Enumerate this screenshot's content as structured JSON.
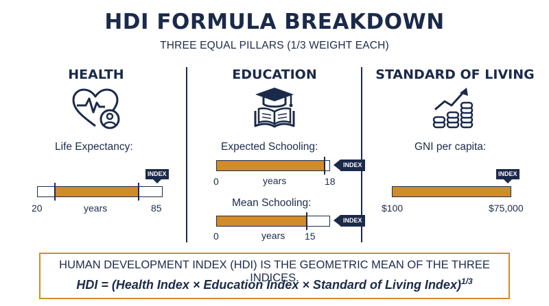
{
  "title": "HDI FORMULA BREAKDOWN",
  "subtitle": "THREE EQUAL PILLARS (1/3 WEIGHT EACH)",
  "index_flag": "INDEX",
  "colors": {
    "navy": "#1b2a4a",
    "gold": "#d08c2a"
  },
  "pillars": [
    {
      "title": "HEALTH",
      "icon": "heart-pulse-person-icon",
      "indicators": [
        {
          "label": "Life Expectancy:",
          "unit": "years",
          "min_label": "20",
          "max_label": "85",
          "fill_start": 0.14,
          "fill_end": 0.81
        }
      ]
    },
    {
      "title": "EDUCATION",
      "icon": "graduation-cap-book-icon",
      "indicators": [
        {
          "label": "Expected Schooling:",
          "unit": "years",
          "min_label": "0",
          "max_label": "18",
          "fill_start": 0.0,
          "fill_end": 0.96
        },
        {
          "label": "Mean Schooling:",
          "unit": "years",
          "min_label": "0",
          "max_label": "15",
          "fill_start": 0.0,
          "fill_end": 0.8
        }
      ]
    },
    {
      "title": "STANDARD OF LIVING",
      "icon": "growth-chart-coins-icon",
      "indicators": [
        {
          "label": "GNI per capita:",
          "unit": "",
          "min_label": "$100",
          "max_label": "$75,000",
          "fill_start": 0.0,
          "fill_end": 1.0
        }
      ]
    }
  ],
  "formula": {
    "description": "HUMAN DEVELOPMENT INDEX (HDI) IS THE GEOMETRIC MEAN OF THE THREE INDICES.",
    "equation": "HDI = (Health Index × Education Index × Standard of Living Index)",
    "exponent": "1/3"
  }
}
